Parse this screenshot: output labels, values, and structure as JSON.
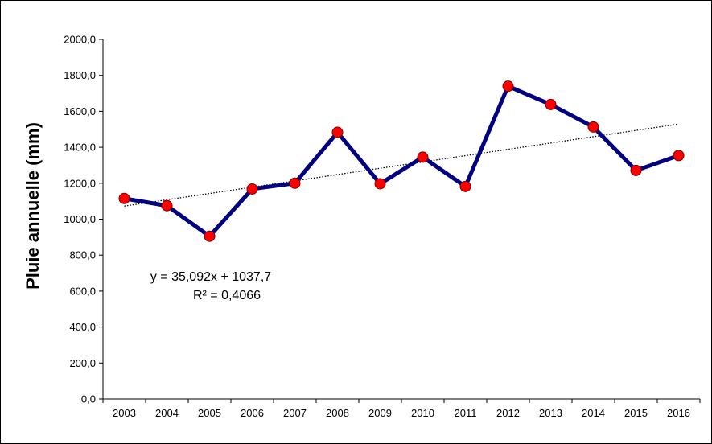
{
  "chart_data": {
    "type": "line",
    "ylabel": "Pluie annuelle (mm)",
    "xlabel": "",
    "title": "",
    "ylim": [
      0,
      2000
    ],
    "yticks": [
      "0,0",
      "200,0",
      "400,0",
      "600,0",
      "800,0",
      "1000,0",
      "1200,0",
      "1400,0",
      "1600,0",
      "1800,0",
      "2000,0"
    ],
    "categories": [
      "2003",
      "2004",
      "2005",
      "2006",
      "2007",
      "2008",
      "2009",
      "2010",
      "2011",
      "2012",
      "2013",
      "2014",
      "2015",
      "2016"
    ],
    "series": [
      {
        "values": [
          1115,
          1075,
          905,
          1168,
          1200,
          1483,
          1197,
          1345,
          1182,
          1740,
          1638,
          1513,
          1271,
          1354
        ]
      }
    ],
    "trendline": {
      "type": "linear",
      "slope": 35.092,
      "intercept": 1037.7,
      "equation": "y = 35,092x + 1037,7",
      "r2": "R² = 0,4066"
    },
    "grid": false,
    "colors": {
      "line": "#000080",
      "marker": "#ff0000",
      "marker_edge": "#7a0000"
    }
  }
}
